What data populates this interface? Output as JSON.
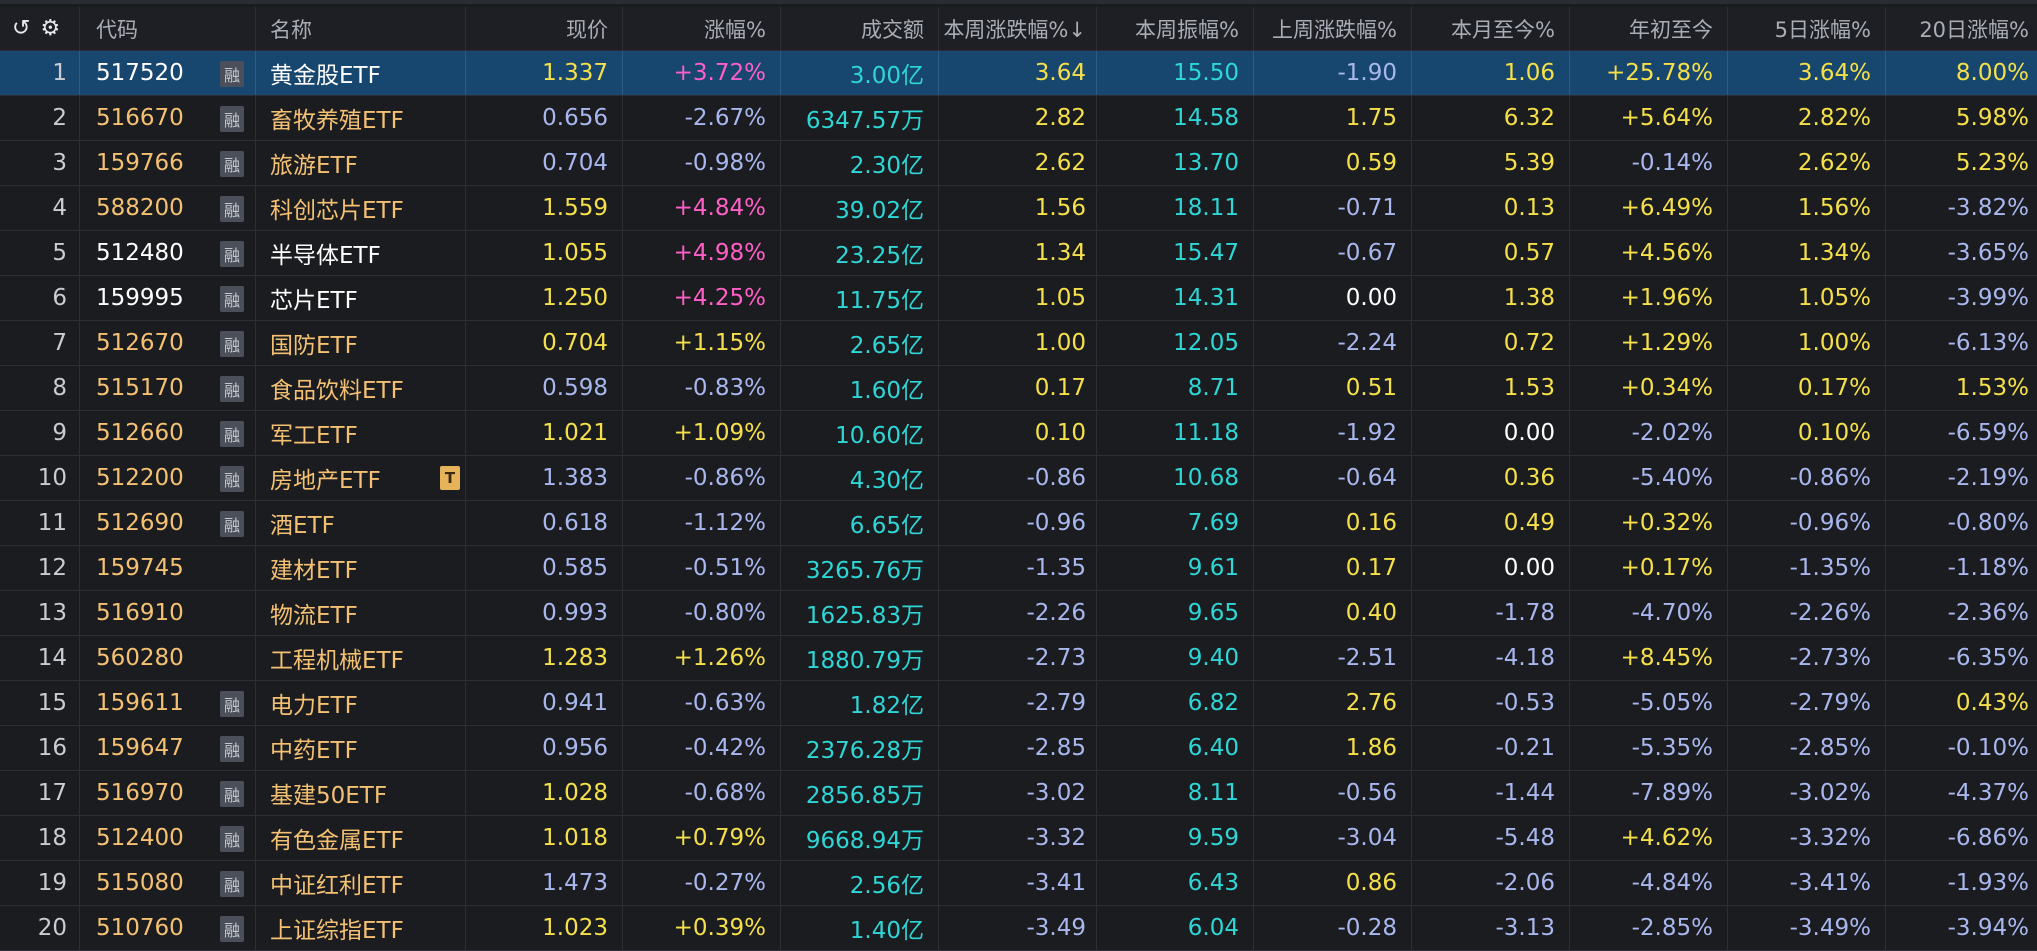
{
  "header": {
    "undo_icon": "undo-icon",
    "settings_icon": "gear-icon",
    "columns": [
      "代码",
      "名称",
      "现价",
      "涨幅%",
      "成交额",
      "本周涨跌幅%↓",
      "本周振幅%",
      "上周涨跌幅%",
      "本月至今%",
      "年初至今",
      "5日涨幅%",
      "20日涨幅%"
    ]
  },
  "badges": {
    "margin": "融",
    "tag": "T"
  },
  "rows": [
    {
      "no": "1",
      "code": "517520",
      "name": "黄金股ETF",
      "price": "1.337",
      "chg": "+3.72%",
      "amount": "3.00亿",
      "wchg": "3.64",
      "wamp": "15.50",
      "lwchg": "-1.90",
      "mtd": "1.06",
      "ytd": "+25.78%",
      "d5": "3.64%",
      "d20": "8.00%"
    },
    {
      "no": "2",
      "code": "516670",
      "name": "畜牧养殖ETF",
      "price": "0.656",
      "chg": "-2.67%",
      "amount": "6347.57万",
      "wchg": "2.82",
      "wamp": "14.58",
      "lwchg": "1.75",
      "mtd": "6.32",
      "ytd": "+5.64%",
      "d5": "2.82%",
      "d20": "5.98%"
    },
    {
      "no": "3",
      "code": "159766",
      "name": "旅游ETF",
      "price": "0.704",
      "chg": "-0.98%",
      "amount": "2.30亿",
      "wchg": "2.62",
      "wamp": "13.70",
      "lwchg": "0.59",
      "mtd": "5.39",
      "ytd": "-0.14%",
      "d5": "2.62%",
      "d20": "5.23%"
    },
    {
      "no": "4",
      "code": "588200",
      "name": "科创芯片ETF",
      "price": "1.559",
      "chg": "+4.84%",
      "amount": "39.02亿",
      "wchg": "1.56",
      "wamp": "18.11",
      "lwchg": "-0.71",
      "mtd": "0.13",
      "ytd": "+6.49%",
      "d5": "1.56%",
      "d20": "-3.82%"
    },
    {
      "no": "5",
      "code": "512480",
      "name": "半导体ETF",
      "price": "1.055",
      "chg": "+4.98%",
      "amount": "23.25亿",
      "wchg": "1.34",
      "wamp": "15.47",
      "lwchg": "-0.67",
      "mtd": "0.57",
      "ytd": "+4.56%",
      "d5": "1.34%",
      "d20": "-3.65%"
    },
    {
      "no": "6",
      "code": "159995",
      "name": "芯片ETF",
      "price": "1.250",
      "chg": "+4.25%",
      "amount": "11.75亿",
      "wchg": "1.05",
      "wamp": "14.31",
      "lwchg": "0.00",
      "mtd": "1.38",
      "ytd": "+1.96%",
      "d5": "1.05%",
      "d20": "-3.99%"
    },
    {
      "no": "7",
      "code": "512670",
      "name": "国防ETF",
      "price": "0.704",
      "chg": "+1.15%",
      "amount": "2.65亿",
      "wchg": "1.00",
      "wamp": "12.05",
      "lwchg": "-2.24",
      "mtd": "0.72",
      "ytd": "+1.29%",
      "d5": "1.00%",
      "d20": "-6.13%"
    },
    {
      "no": "8",
      "code": "515170",
      "name": "食品饮料ETF",
      "price": "0.598",
      "chg": "-0.83%",
      "amount": "1.60亿",
      "wchg": "0.17",
      "wamp": "8.71",
      "lwchg": "0.51",
      "mtd": "1.53",
      "ytd": "+0.34%",
      "d5": "0.17%",
      "d20": "1.53%"
    },
    {
      "no": "9",
      "code": "512660",
      "name": "军工ETF",
      "price": "1.021",
      "chg": "+1.09%",
      "amount": "10.60亿",
      "wchg": "0.10",
      "wamp": "11.18",
      "lwchg": "-1.92",
      "mtd": "0.00",
      "ytd": "-2.02%",
      "d5": "0.10%",
      "d20": "-6.59%"
    },
    {
      "no": "10",
      "code": "512200",
      "name": "房地产ETF",
      "price": "1.383",
      "chg": "-0.86%",
      "amount": "4.30亿",
      "wchg": "-0.86",
      "wamp": "10.68",
      "lwchg": "-0.64",
      "mtd": "0.36",
      "ytd": "-5.40%",
      "d5": "-0.86%",
      "d20": "-2.19%"
    },
    {
      "no": "11",
      "code": "512690",
      "name": "酒ETF",
      "price": "0.618",
      "chg": "-1.12%",
      "amount": "6.65亿",
      "wchg": "-0.96",
      "wamp": "7.69",
      "lwchg": "0.16",
      "mtd": "0.49",
      "ytd": "+0.32%",
      "d5": "-0.96%",
      "d20": "-0.80%"
    },
    {
      "no": "12",
      "code": "159745",
      "name": "建材ETF",
      "price": "0.585",
      "chg": "-0.51%",
      "amount": "3265.76万",
      "wchg": "-1.35",
      "wamp": "9.61",
      "lwchg": "0.17",
      "mtd": "0.00",
      "ytd": "+0.17%",
      "d5": "-1.35%",
      "d20": "-1.18%"
    },
    {
      "no": "13",
      "code": "516910",
      "name": "物流ETF",
      "price": "0.993",
      "chg": "-0.80%",
      "amount": "1625.83万",
      "wchg": "-2.26",
      "wamp": "9.65",
      "lwchg": "0.40",
      "mtd": "-1.78",
      "ytd": "-4.70%",
      "d5": "-2.26%",
      "d20": "-2.36%"
    },
    {
      "no": "14",
      "code": "560280",
      "name": "工程机械ETF",
      "price": "1.283",
      "chg": "+1.26%",
      "amount": "1880.79万",
      "wchg": "-2.73",
      "wamp": "9.40",
      "lwchg": "-2.51",
      "mtd": "-4.18",
      "ytd": "+8.45%",
      "d5": "-2.73%",
      "d20": "-6.35%"
    },
    {
      "no": "15",
      "code": "159611",
      "name": "电力ETF",
      "price": "0.941",
      "chg": "-0.63%",
      "amount": "1.82亿",
      "wchg": "-2.79",
      "wamp": "6.82",
      "lwchg": "2.76",
      "mtd": "-0.53",
      "ytd": "-5.05%",
      "d5": "-2.79%",
      "d20": "0.43%"
    },
    {
      "no": "16",
      "code": "159647",
      "name": "中药ETF",
      "price": "0.956",
      "chg": "-0.42%",
      "amount": "2376.28万",
      "wchg": "-2.85",
      "wamp": "6.40",
      "lwchg": "1.86",
      "mtd": "-0.21",
      "ytd": "-5.35%",
      "d5": "-2.85%",
      "d20": "-0.10%"
    },
    {
      "no": "17",
      "code": "516970",
      "name": "基建50ETF",
      "price": "1.028",
      "chg": "-0.68%",
      "amount": "2856.85万",
      "wchg": "-3.02",
      "wamp": "8.11",
      "lwchg": "-0.56",
      "mtd": "-1.44",
      "ytd": "-7.89%",
      "d5": "-3.02%",
      "d20": "-4.37%"
    },
    {
      "no": "18",
      "code": "512400",
      "name": "有色金属ETF",
      "price": "1.018",
      "chg": "+0.79%",
      "amount": "9668.94万",
      "wchg": "-3.32",
      "wamp": "9.59",
      "lwchg": "-3.04",
      "mtd": "-5.48",
      "ytd": "+4.62%",
      "d5": "-3.32%",
      "d20": "-6.86%"
    },
    {
      "no": "19",
      "code": "515080",
      "name": "中证红利ETF",
      "price": "1.473",
      "chg": "-0.27%",
      "amount": "2.56亿",
      "wchg": "-3.41",
      "wamp": "6.43",
      "lwchg": "0.86",
      "mtd": "-2.06",
      "ytd": "-4.84%",
      "d5": "-3.41%",
      "d20": "-1.93%"
    },
    {
      "no": "20",
      "code": "510760",
      "name": "上证综指ETF",
      "price": "1.023",
      "chg": "+0.39%",
      "amount": "1.40亿",
      "wchg": "-3.49",
      "wamp": "6.04",
      "lwchg": "-0.28",
      "mtd": "-3.13",
      "ytd": "-2.85%",
      "d5": "-3.49%",
      "d20": "-3.94%"
    }
  ]
}
